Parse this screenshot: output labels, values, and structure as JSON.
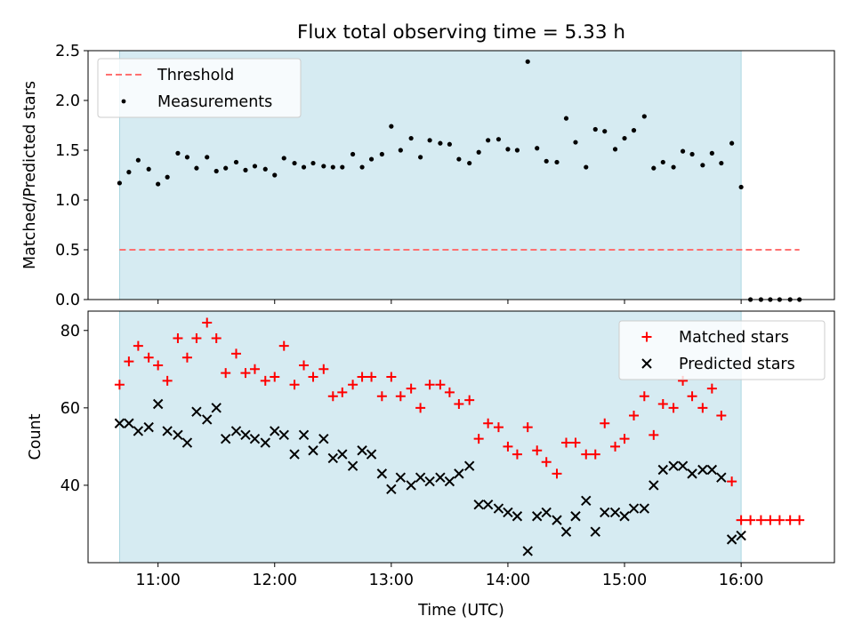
{
  "chart_data": [
    {
      "type": "scatter",
      "title": "Flux total observing time = 5.33 h",
      "ylabel": "Matched/Predicted stars",
      "xlabel": "",
      "ylim": [
        0,
        2.5
      ],
      "xlim": [
        10.4,
        16.8
      ],
      "yticks": [
        0.0,
        0.5,
        1.0,
        1.5,
        2.0,
        2.5
      ],
      "ytick_labels": [
        "0.0",
        "0.5",
        "1.0",
        "1.5",
        "2.0",
        "2.5"
      ],
      "observing_window": [
        10.67,
        16.0
      ],
      "threshold": {
        "value": 0.5,
        "x_range": [
          10.67,
          16.5
        ],
        "color": "#ff7070"
      },
      "legend": {
        "position": "top-left",
        "entries": [
          "Threshold",
          "Measurements"
        ]
      },
      "series": [
        {
          "name": "Measurements",
          "color": "#000000",
          "x": [
            10.67,
            10.75,
            10.83,
            10.92,
            11.0,
            11.08,
            11.17,
            11.25,
            11.33,
            11.42,
            11.5,
            11.58,
            11.67,
            11.75,
            11.83,
            11.92,
            12.0,
            12.08,
            12.17,
            12.25,
            12.33,
            12.42,
            12.5,
            12.58,
            12.67,
            12.75,
            12.83,
            12.92,
            13.0,
            13.08,
            13.17,
            13.25,
            13.33,
            13.42,
            13.5,
            13.58,
            13.67,
            13.75,
            13.83,
            13.92,
            14.0,
            14.08,
            14.17,
            14.25,
            14.33,
            14.42,
            14.5,
            14.58,
            14.67,
            14.75,
            14.83,
            14.92,
            15.0,
            15.08,
            15.17,
            15.25,
            15.33,
            15.42,
            15.5,
            15.58,
            15.67,
            15.75,
            15.83,
            15.92,
            16.0,
            16.08,
            16.17,
            16.25,
            16.33,
            16.42,
            16.5
          ],
          "y": [
            1.17,
            1.28,
            1.4,
            1.31,
            1.16,
            1.23,
            1.47,
            1.43,
            1.32,
            1.43,
            1.29,
            1.32,
            1.38,
            1.3,
            1.34,
            1.31,
            1.25,
            1.42,
            1.37,
            1.33,
            1.37,
            1.34,
            1.33,
            1.33,
            1.46,
            1.33,
            1.41,
            1.46,
            1.74,
            1.5,
            1.62,
            1.43,
            1.6,
            1.57,
            1.56,
            1.41,
            1.37,
            1.48,
            1.6,
            1.61,
            1.51,
            1.5,
            2.39,
            1.52,
            1.39,
            1.38,
            1.82,
            1.58,
            1.33,
            1.71,
            1.69,
            1.51,
            1.62,
            1.7,
            1.84,
            1.32,
            1.38,
            1.33,
            1.49,
            1.46,
            1.35,
            1.47,
            1.37,
            1.57,
            1.13,
            0.0,
            0.0,
            0.0,
            0.0,
            0.0,
            0.0
          ]
        }
      ]
    },
    {
      "type": "scatter",
      "title": "",
      "xlabel": "Time (UTC)",
      "ylabel": "Count",
      "ylim": [
        20,
        85
      ],
      "xlim": [
        10.4,
        16.8
      ],
      "xticks": [
        11,
        12,
        13,
        14,
        15,
        16
      ],
      "xtick_labels": [
        "11:00",
        "12:00",
        "13:00",
        "14:00",
        "15:00",
        "16:00"
      ],
      "yticks": [
        40,
        60,
        80
      ],
      "ytick_labels": [
        "40",
        "60",
        "80"
      ],
      "observing_window": [
        10.67,
        16.0
      ],
      "legend": {
        "position": "top-right",
        "entries": [
          "Matched stars",
          "Predicted stars"
        ]
      },
      "series": [
        {
          "name": "Matched stars",
          "marker": "+",
          "color": "#ff0000",
          "x": [
            10.67,
            10.75,
            10.83,
            10.92,
            11.0,
            11.08,
            11.17,
            11.25,
            11.33,
            11.42,
            11.5,
            11.58,
            11.67,
            11.75,
            11.83,
            11.92,
            12.0,
            12.08,
            12.17,
            12.25,
            12.33,
            12.42,
            12.5,
            12.58,
            12.67,
            12.75,
            12.83,
            12.92,
            13.0,
            13.08,
            13.17,
            13.25,
            13.33,
            13.42,
            13.5,
            13.58,
            13.67,
            13.75,
            13.83,
            13.92,
            14.0,
            14.08,
            14.17,
            14.25,
            14.33,
            14.42,
            14.5,
            14.58,
            14.67,
            14.75,
            14.83,
            14.92,
            15.0,
            15.08,
            15.17,
            15.25,
            15.33,
            15.42,
            15.5,
            15.58,
            15.67,
            15.75,
            15.83,
            15.92,
            16.0,
            16.08,
            16.17,
            16.25,
            16.33,
            16.42,
            16.5
          ],
          "y": [
            66,
            72,
            76,
            73,
            71,
            67,
            78,
            73,
            78,
            82,
            78,
            69,
            74,
            69,
            70,
            67,
            68,
            76,
            66,
            71,
            68,
            70,
            63,
            64,
            66,
            68,
            68,
            63,
            68,
            63,
            65,
            60,
            66,
            66,
            64,
            61,
            62,
            52,
            56,
            55,
            50,
            48,
            55,
            49,
            46,
            43,
            51,
            51,
            48,
            48,
            56,
            50,
            52,
            58,
            63,
            53,
            61,
            60,
            67,
            63,
            60,
            65,
            58,
            41,
            31,
            31,
            31,
            31,
            31,
            31,
            31
          ]
        },
        {
          "name": "Predicted stars",
          "marker": "x",
          "color": "#000000",
          "x": [
            10.67,
            10.75,
            10.83,
            10.92,
            11.0,
            11.08,
            11.17,
            11.25,
            11.33,
            11.42,
            11.5,
            11.58,
            11.67,
            11.75,
            11.83,
            11.92,
            12.0,
            12.08,
            12.17,
            12.25,
            12.33,
            12.42,
            12.5,
            12.58,
            12.67,
            12.75,
            12.83,
            12.92,
            13.0,
            13.08,
            13.17,
            13.25,
            13.33,
            13.42,
            13.5,
            13.58,
            13.67,
            13.75,
            13.83,
            13.92,
            14.0,
            14.08,
            14.17,
            14.25,
            14.33,
            14.42,
            14.5,
            14.58,
            14.67,
            14.75,
            14.83,
            14.92,
            15.0,
            15.08,
            15.17,
            15.25,
            15.33,
            15.42,
            15.5,
            15.58,
            15.67,
            15.75,
            15.83,
            15.92,
            16.0
          ],
          "y": [
            56,
            56,
            54,
            55,
            61,
            54,
            53,
            51,
            59,
            57,
            60,
            52,
            54,
            53,
            52,
            51,
            54,
            53,
            48,
            53,
            49,
            52,
            47,
            48,
            45,
            49,
            48,
            43,
            39,
            42,
            40,
            42,
            41,
            42,
            41,
            43,
            45,
            35,
            35,
            34,
            33,
            32,
            23,
            32,
            33,
            31,
            28,
            32,
            36,
            28,
            33,
            33,
            32,
            34,
            34,
            40,
            44,
            45,
            45,
            43,
            44,
            44,
            42,
            26,
            27
          ]
        }
      ]
    }
  ]
}
